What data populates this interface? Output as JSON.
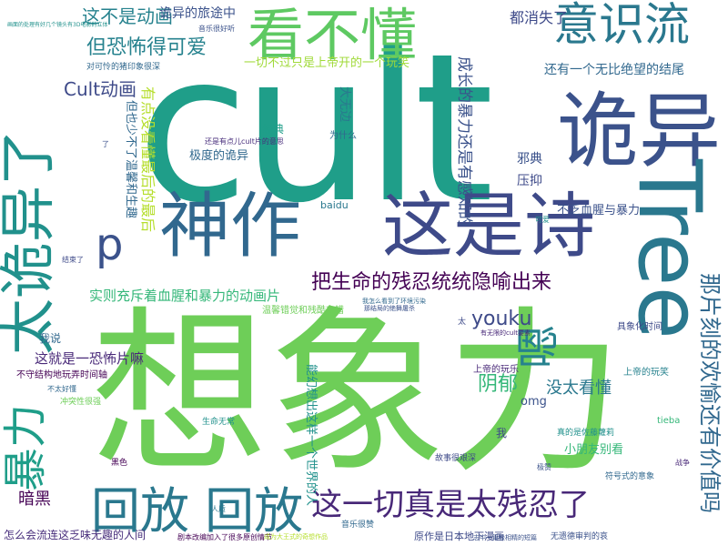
{
  "words": [
    {
      "text": "cult",
      "color": "#1f9e89"
    },
    {
      "text": "想象力",
      "color": "#6ece58"
    },
    {
      "text": "诡异",
      "color": "#3b528b"
    },
    {
      "text": "神作",
      "color": "#31688e"
    },
    {
      "text": "这是诗",
      "color": "#3e4a89"
    },
    {
      "text": "Tree",
      "color": "#2a788e"
    },
    {
      "text": "看不懂",
      "color": "#5ec962"
    },
    {
      "text": "意识流",
      "color": "#2a788e"
    },
    {
      "text": "太诡异了",
      "color": "#21918c"
    },
    {
      "text": "回放 回放",
      "color": "#2a788e"
    },
    {
      "text": "这一切真是太残忍了",
      "color": "#482878"
    },
    {
      "text": "暴力",
      "color": "#1f9e89"
    },
    {
      "text": "嗯",
      "color": "#26828e"
    },
    {
      "text": "p",
      "color": "#3b528b"
    },
    {
      "text": "把生命的残忍统统隐喻出来",
      "color": "#440154"
    },
    {
      "text": "那片刻的欢愉还有价值吗",
      "color": "#31688e"
    },
    {
      "text": "但恐怖得可爱",
      "color": "#26828e"
    },
    {
      "text": "Cult动画",
      "color": "#3e4a89"
    },
    {
      "text": "这不是动画",
      "color": "#26828e"
    },
    {
      "text": "诡异的旅途中",
      "color": "#3b528b"
    },
    {
      "text": "都消失了",
      "color": "#3e4a89"
    },
    {
      "text": "还有一个无比绝望的结尾",
      "color": "#31688e"
    },
    {
      "text": "成长的暴力还是有感知的",
      "color": "#3b528b"
    },
    {
      "text": "实则充斥着血腥和暴力的动画片",
      "color": "#35b779"
    },
    {
      "text": "youku",
      "color": "#3e4a89"
    },
    {
      "text": "阴郁",
      "color": "#35b779"
    },
    {
      "text": "没太看懂",
      "color": "#2a788e"
    },
    {
      "text": "暗黑",
      "color": "#440154"
    },
    {
      "text": "这就是一恐怖片嘛",
      "color": "#482878"
    },
    {
      "text": "怎么会流连这乏味无趣的人间",
      "color": "#472d7b"
    },
    {
      "text": "原作是日本地下漫画",
      "color": "#3e4a89"
    },
    {
      "text": "一切不过只是上帝开的一个玩笑",
      "color": "#a0da39"
    },
    {
      "text": "对可怜的猪印象很深",
      "color": "#31688e"
    },
    {
      "text": "大无边",
      "color": "#2a788e"
    },
    {
      "text": "极度的诡异",
      "color": "#31688e"
    },
    {
      "text": "有点没看懂最后的最后",
      "color": "#b5de2b"
    },
    {
      "text": "但也少不了温馨和生趣",
      "color": "#31688e"
    },
    {
      "text": "不乏血腥与暴力",
      "color": "#3b528b"
    },
    {
      "text": "邪典",
      "color": "#3b528b"
    },
    {
      "text": "压抑",
      "color": "#3e4a89"
    },
    {
      "text": "经典",
      "color": "#1f9e89"
    },
    {
      "text": "能幻想出这样一个世界的人",
      "color": "#21918c"
    },
    {
      "text": "小朋友别看",
      "color": "#35b779"
    },
    {
      "text": "omg",
      "color": "#3b528b"
    },
    {
      "text": "上帝的玩笑",
      "color": "#26828e"
    },
    {
      "text": "上帝的玩乐",
      "color": "#482878"
    },
    {
      "text": "具象化时间",
      "color": "#3e4a89"
    },
    {
      "text": "不守结构地玩弄时间轴",
      "color": "#440154"
    },
    {
      "text": "我说",
      "color": "#31688e"
    },
    {
      "text": "温馨错觉和残酷交错",
      "color": "#6ece58"
    },
    {
      "text": "为什么",
      "color": "#31688e"
    },
    {
      "text": "还是有点儿cult片的意思",
      "color": "#472d7b"
    },
    {
      "text": "符号式的意象",
      "color": "#31688e"
    },
    {
      "text": "真的是佐藤蘿莉",
      "color": "#21918c"
    },
    {
      "text": "故事很艰深",
      "color": "#3e4a89"
    },
    {
      "text": "音乐很赞",
      "color": "#31688e"
    },
    {
      "text": "baidu",
      "color": "#2a788e"
    },
    {
      "text": "tieba",
      "color": "#35b779"
    },
    {
      "text": "极赞",
      "color": "#3b528b"
    },
    {
      "text": "可爱",
      "color": "#21918c"
    },
    {
      "text": "太",
      "color": "#3e4a89"
    },
    {
      "text": "我",
      "color": "#3e4a89"
    },
    {
      "text": "黑色",
      "color": "#440154"
    },
    {
      "text": "冲突性很强",
      "color": "#6ece58"
    },
    {
      "text": "不太好懂",
      "color": "#31688e"
    },
    {
      "text": "有无限的cult要素",
      "color": "#482878"
    },
    {
      "text": "那结局的绝舞屠杀",
      "color": "#3b528b"
    },
    {
      "text": "我怎么看到了环境污染",
      "color": "#31688e"
    },
    {
      "text": "生命无常",
      "color": "#21918c"
    },
    {
      "text": "结束了",
      "color": "#3e4a89"
    },
    {
      "text": "剧本改编加入了很多原创情节",
      "color": "#440154"
    },
    {
      "text": "成为大王式的奇想作品",
      "color": "#b5de2b"
    },
    {
      "text": "志中一篇极相精的短篇",
      "color": "#3b528b"
    },
    {
      "text": "无遗德审判的哀",
      "color": "#3b528b"
    },
    {
      "text": "画面的处理有好几个镜头有3D电影的立体",
      "color": "#21918c"
    },
    {
      "text": "音乐很好听",
      "color": "#3b528b"
    },
    {
      "text": "人质",
      "color": "#2a788e"
    },
    {
      "text": "战争",
      "color": "#482878"
    },
    {
      "text": "了",
      "color": "#3b528b"
    }
  ]
}
